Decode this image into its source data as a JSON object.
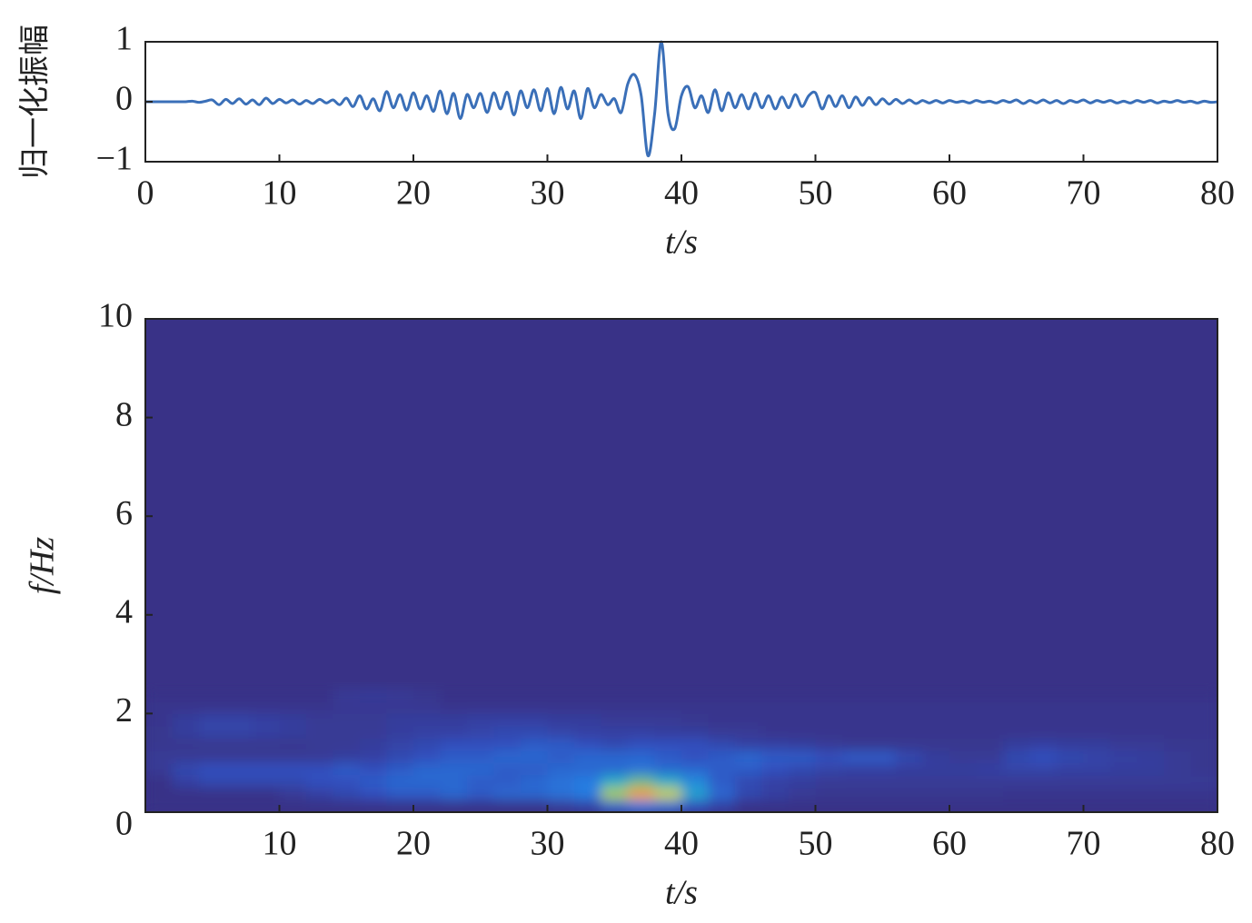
{
  "chart_data": [
    {
      "type": "line",
      "ylabel": "归一化振幅",
      "xlabel": "t/s",
      "xlim": [
        0,
        80
      ],
      "xticks": [
        0,
        10,
        20,
        30,
        40,
        50,
        60,
        70,
        80
      ],
      "ylim": [
        -1,
        1
      ],
      "yticks": [
        {
          "value": -1,
          "label": "−1"
        },
        0,
        1
      ],
      "series": [
        {
          "color": "#3a6fb8",
          "x": [
            0,
            0.5,
            1,
            1.5,
            2,
            2.5,
            3,
            3.5,
            4,
            4.5,
            5,
            5.5,
            6,
            6.5,
            7,
            7.5,
            8,
            8.5,
            9,
            9.5,
            10,
            10.5,
            11,
            11.5,
            12,
            12.5,
            13,
            13.5,
            14,
            14.5,
            15,
            15.5,
            16,
            16.5,
            17,
            17.5,
            18,
            18.5,
            19,
            19.5,
            20,
            20.5,
            21,
            21.5,
            22,
            22.5,
            23,
            23.5,
            24,
            24.5,
            25,
            25.5,
            26,
            26.5,
            27,
            27.5,
            28,
            28.5,
            29,
            29.5,
            30,
            30.5,
            31,
            31.5,
            32,
            32.5,
            33,
            33.5,
            34,
            34.5,
            35,
            35.5,
            36,
            36.5,
            37,
            37.5,
            38,
            38.5,
            39,
            39.5,
            40,
            40.5,
            41,
            41.5,
            42,
            42.5,
            43,
            43.5,
            44,
            44.5,
            45,
            45.5,
            46,
            46.5,
            47,
            47.5,
            48,
            48.5,
            49,
            49.5,
            50,
            50.5,
            51,
            51.5,
            52,
            52.5,
            53,
            53.5,
            54,
            54.5,
            55,
            55.5,
            56,
            56.5,
            57,
            57.5,
            58,
            58.5,
            59,
            59.5,
            60,
            60.5,
            61,
            61.5,
            62,
            62.5,
            63,
            63.5,
            64,
            64.5,
            65,
            65.5,
            66,
            66.5,
            67,
            67.5,
            68,
            68.5,
            69,
            69.5,
            70,
            70.5,
            71,
            71.5,
            72,
            72.5,
            73,
            73.5,
            74,
            74.5,
            75,
            75.5,
            76,
            76.5,
            77,
            77.5,
            78,
            78.5,
            79,
            79.5,
            80
          ],
          "values": [
            0,
            0,
            0,
            0,
            0,
            0,
            0,
            0.01,
            -0.01,
            0.01,
            0.03,
            -0.05,
            0.04,
            -0.03,
            0.05,
            -0.04,
            0.03,
            -0.05,
            0.06,
            -0.03,
            0.04,
            -0.02,
            0.03,
            -0.04,
            0.02,
            -0.03,
            0.04,
            -0.02,
            0.03,
            -0.05,
            0.06,
            -0.08,
            0.1,
            -0.12,
            0.05,
            -0.15,
            0.17,
            -0.1,
            0.12,
            -0.14,
            0.15,
            -0.12,
            0.1,
            -0.16,
            0.18,
            -0.2,
            0.14,
            -0.28,
            0.12,
            -0.1,
            0.14,
            -0.18,
            0.15,
            -0.12,
            0.16,
            -0.22,
            0.18,
            -0.1,
            0.2,
            -0.15,
            0.22,
            -0.2,
            0.24,
            -0.12,
            0.18,
            -0.28,
            0.22,
            -0.1,
            0.12,
            -0.05,
            0.05,
            -0.18,
            0.3,
            0.45,
            0.1,
            -0.9,
            -0.2,
            1.0,
            -0.2,
            -0.45,
            0.1,
            0.25,
            -0.1,
            0.1,
            -0.18,
            0.2,
            -0.15,
            0.15,
            -0.1,
            0.12,
            -0.12,
            0.14,
            -0.1,
            0.1,
            -0.12,
            0.08,
            -0.1,
            0.12,
            -0.08,
            0.1,
            0.15,
            -0.12,
            0.1,
            -0.08,
            0.1,
            -0.1,
            0.08,
            -0.06,
            0.07,
            -0.05,
            0.05,
            -0.04,
            0.04,
            -0.03,
            0.03,
            -0.03,
            0.02,
            -0.02,
            0.02,
            -0.02,
            0.02,
            -0.01,
            0.01,
            -0.02,
            0.02,
            -0.01,
            0.01,
            -0.02,
            0.02,
            -0.01,
            0.03,
            -0.03,
            0.02,
            -0.02,
            0.03,
            -0.02,
            0.02,
            -0.03,
            0.02,
            -0.01,
            0.03,
            -0.02,
            0.02,
            -0.01,
            0.02,
            -0.02,
            0.01,
            -0.02,
            0.02,
            -0.01,
            0.02,
            -0.02,
            0.01,
            -0.01,
            0.02,
            -0.01,
            0.01,
            -0.02,
            0.01,
            -0.01,
            0
          ]
        }
      ]
    },
    {
      "type": "heatmap",
      "ylabel": "f/Hz",
      "xlabel": "t/s",
      "xlim": [
        0,
        80
      ],
      "xticks": [
        10,
        20,
        30,
        40,
        50,
        60,
        70,
        80
      ],
      "ylim": [
        0,
        10
      ],
      "yticks": [
        0,
        2,
        4,
        6,
        8,
        10
      ],
      "x": [
        0,
        2,
        4,
        6,
        8,
        10,
        12,
        14,
        16,
        18,
        20,
        22,
        24,
        26,
        28,
        30,
        32,
        34,
        36,
        38,
        40,
        42,
        44,
        46,
        48,
        50,
        52,
        54,
        56,
        58,
        60,
        62,
        64,
        66,
        68,
        70,
        72,
        74,
        76,
        78,
        80
      ],
      "y": [
        0,
        0.25,
        0.5,
        0.75,
        1,
        1.25,
        1.5,
        1.75,
        2,
        2.25,
        2.5
      ],
      "z": [
        [
          0,
          0,
          0,
          0,
          0,
          0,
          0,
          0,
          0,
          0,
          0,
          0,
          0,
          0,
          0,
          0.05,
          0.1,
          0.3,
          0.4,
          0.35,
          0.2,
          0.1,
          0,
          0,
          0,
          0,
          0,
          0,
          0,
          0,
          0,
          0,
          0,
          0,
          0,
          0,
          0,
          0,
          0,
          0
        ],
        [
          0,
          0,
          0,
          0,
          0,
          0.05,
          0.1,
          0.15,
          0.2,
          0.25,
          0.25,
          0.3,
          0.25,
          0.3,
          0.3,
          0.35,
          0.4,
          0.8,
          1.0,
          0.85,
          0.55,
          0.3,
          0.15,
          0.1,
          0.05,
          0.03,
          0.03,
          0.03,
          0.03,
          0.03,
          0.03,
          0.03,
          0.02,
          0.02,
          0.02,
          0.02,
          0.02,
          0.02,
          0.02,
          0.02
        ],
        [
          0,
          0.1,
          0.15,
          0.15,
          0.15,
          0.15,
          0.2,
          0.2,
          0.25,
          0.3,
          0.3,
          0.3,
          0.25,
          0.25,
          0.3,
          0.35,
          0.4,
          0.6,
          0.7,
          0.6,
          0.45,
          0.25,
          0.15,
          0.1,
          0.08,
          0.05,
          0.05,
          0.05,
          0.05,
          0.05,
          0.05,
          0.05,
          0.05,
          0.05,
          0.05,
          0.05,
          0.05,
          0.05,
          0.05,
          0.05
        ],
        [
          0.05,
          0.15,
          0.2,
          0.2,
          0.2,
          0.2,
          0.2,
          0.25,
          0.2,
          0.25,
          0.3,
          0.3,
          0.3,
          0.25,
          0.25,
          0.3,
          0.3,
          0.3,
          0.35,
          0.3,
          0.3,
          0.25,
          0.25,
          0.2,
          0.15,
          0.12,
          0.1,
          0.1,
          0.08,
          0.08,
          0.08,
          0.1,
          0.12,
          0.12,
          0.1,
          0.1,
          0.08,
          0.08,
          0.05,
          0.03
        ],
        [
          0.05,
          0.05,
          0.05,
          0.05,
          0.05,
          0.05,
          0.05,
          0.08,
          0.1,
          0.15,
          0.2,
          0.25,
          0.25,
          0.3,
          0.3,
          0.25,
          0.3,
          0.3,
          0.3,
          0.25,
          0.2,
          0.25,
          0.3,
          0.25,
          0.25,
          0.2,
          0.25,
          0.25,
          0.15,
          0.08,
          0.05,
          0.05,
          0.15,
          0.2,
          0.15,
          0.12,
          0.1,
          0.08,
          0.05,
          0.03
        ],
        [
          0.03,
          0.03,
          0.03,
          0.03,
          0.03,
          0.03,
          0.05,
          0.05,
          0.08,
          0.12,
          0.15,
          0.2,
          0.2,
          0.2,
          0.25,
          0.25,
          0.2,
          0.15,
          0.2,
          0.2,
          0.2,
          0.15,
          0.1,
          0.1,
          0.08,
          0.05,
          0.03,
          0.03,
          0.03,
          0.03,
          0.03,
          0.03,
          0.08,
          0.1,
          0.08,
          0.08,
          0.05,
          0.05,
          0.03,
          0.03
        ],
        [
          0.03,
          0.08,
          0.12,
          0.12,
          0.1,
          0.08,
          0.05,
          0.05,
          0.05,
          0.08,
          0.1,
          0.1,
          0.12,
          0.15,
          0.15,
          0.12,
          0.1,
          0.1,
          0.1,
          0.08,
          0.08,
          0.05,
          0.05,
          0.02,
          0.02,
          0.02,
          0.02,
          0.02,
          0.02,
          0.02,
          0.02,
          0.02,
          0.02,
          0.02,
          0.02,
          0.02,
          0.02,
          0.02,
          0.02,
          0.02
        ],
        [
          0.02,
          0.08,
          0.12,
          0.12,
          0.1,
          0.08,
          0.05,
          0.05,
          0.05,
          0.08,
          0.08,
          0.08,
          0.1,
          0.1,
          0.1,
          0.08,
          0.08,
          0.05,
          0.05,
          0.05,
          0.03,
          0.02,
          0.02,
          0.02,
          0.02,
          0.02,
          0.02,
          0.02,
          0.02,
          0.02,
          0.02,
          0.02,
          0.02,
          0.02,
          0.02,
          0.02,
          0.02,
          0.02,
          0.02,
          0.02
        ],
        [
          0.02,
          0.02,
          0.02,
          0.02,
          0.02,
          0.02,
          0.02,
          0.04,
          0.04,
          0.04,
          0.04,
          0.02,
          0.02,
          0.02,
          0.02,
          0.02,
          0.02,
          0.02,
          0.02,
          0.02,
          0.02,
          0.02,
          0.02,
          0.02,
          0.02,
          0.02,
          0.02,
          0.02,
          0.02,
          0.02,
          0.02,
          0.02,
          0.02,
          0.02,
          0.02,
          0.02,
          0.02,
          0.02,
          0.02,
          0.02
        ],
        [
          0,
          0,
          0,
          0,
          0,
          0,
          0,
          0.05,
          0.06,
          0.05,
          0.03,
          0,
          0,
          0,
          0,
          0,
          0,
          0,
          0,
          0,
          0,
          0,
          0,
          0,
          0,
          0,
          0,
          0,
          0,
          0,
          0,
          0,
          0,
          0,
          0,
          0,
          0,
          0,
          0,
          0
        ]
      ]
    }
  ]
}
